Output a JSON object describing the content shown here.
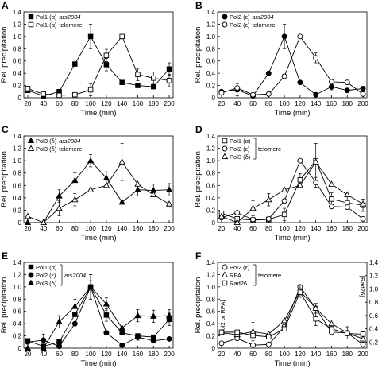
{
  "chart_data": [
    {
      "panel": "A",
      "type": "line",
      "xlabel": "Time (min)",
      "ylabel": "Rel. precipitation",
      "x_ticks": [
        20,
        40,
        60,
        80,
        100,
        120,
        140,
        160,
        180,
        200
      ],
      "xlim": [
        15,
        205
      ],
      "ylim": [
        0,
        1.4
      ],
      "y_ticks": [
        "0",
        "0.2",
        "0.4",
        "0.6",
        "0.8",
        "1.0",
        "1.2",
        "1.4"
      ],
      "legend": "top-left",
      "series": [
        {
          "name": "Pol1 (α) ars2004",
          "legend_main": "Pol1 (α)",
          "legend_tail": "ars2004",
          "tail_italic": true,
          "marker": "square",
          "filled": true,
          "x": [
            20,
            40,
            60,
            80,
            100,
            120,
            140,
            160,
            180,
            200
          ],
          "y": [
            0.12,
            0.03,
            0.1,
            0.55,
            1.0,
            0.54,
            0.25,
            0.2,
            0.18,
            0.47
          ],
          "err": [
            0,
            0,
            0,
            0,
            0.2,
            0.1,
            0,
            0,
            0,
            0.1
          ]
        },
        {
          "name": "Pol1 (α) telomere",
          "legend_main": "Pol1 (α)",
          "legend_tail": "telomere",
          "tail_italic": false,
          "marker": "square",
          "filled": false,
          "x": [
            20,
            40,
            60,
            80,
            100,
            120,
            140,
            160,
            180,
            200
          ],
          "y": [
            0.15,
            0.06,
            0.04,
            0.05,
            0.13,
            0.69,
            1.0,
            0.38,
            0.32,
            0.28
          ],
          "err": [
            0,
            0,
            0,
            0,
            0.1,
            0.1,
            0,
            0.1,
            0.1,
            0.1
          ]
        }
      ]
    },
    {
      "panel": "B",
      "type": "line",
      "xlabel": "Time (min)",
      "ylabel": "Rel. precipitation",
      "x_ticks": [
        20,
        40,
        60,
        80,
        100,
        120,
        140,
        160,
        180,
        200
      ],
      "xlim": [
        15,
        205
      ],
      "ylim": [
        0,
        1.4
      ],
      "y_ticks": [
        "0",
        "0.2",
        "0.4",
        "0.6",
        "0.8",
        "1.0",
        "1.2",
        "1.4"
      ],
      "legend": "top-left",
      "series": [
        {
          "name": "Pol2 (ε) ars2004",
          "legend_main": "Pol2 (ε)",
          "legend_tail": "ars2004",
          "tail_italic": true,
          "marker": "circle",
          "filled": true,
          "x": [
            20,
            40,
            60,
            80,
            100,
            120,
            140,
            160,
            180,
            200
          ],
          "y": [
            0.1,
            0.13,
            0.03,
            0.4,
            1.0,
            0.25,
            0.05,
            0.18,
            0.12,
            0.15
          ],
          "err": [
            0,
            0.1,
            0,
            0,
            0.2,
            0,
            0,
            0.05,
            0,
            0
          ]
        },
        {
          "name": "Pol2 (ε) telomere",
          "legend_main": "Pol2 (ε)",
          "legend_tail": "telomere",
          "tail_italic": false,
          "marker": "circle",
          "filled": false,
          "x": [
            20,
            40,
            60,
            80,
            100,
            120,
            140,
            160,
            180,
            200
          ],
          "y": [
            0.08,
            0.16,
            0.05,
            0.06,
            0.35,
            1.0,
            0.65,
            0.26,
            0.25,
            0.06
          ],
          "err": [
            0,
            0,
            0,
            0,
            0,
            0,
            0.08,
            0,
            0,
            0
          ]
        }
      ]
    },
    {
      "panel": "C",
      "type": "line",
      "xlabel": "Time (min)",
      "ylabel": "Rel. precipitation",
      "x_ticks": [
        20,
        40,
        60,
        80,
        100,
        120,
        140,
        160,
        180,
        200
      ],
      "xlim": [
        15,
        205
      ],
      "ylim": [
        0,
        1.4
      ],
      "y_ticks": [
        "0",
        "0.2",
        "0.4",
        "0.6",
        "0.8",
        "1.0",
        "1.2",
        "1.4"
      ],
      "legend": "top-left",
      "series": [
        {
          "name": "Pol3 (δ) ars2004",
          "legend_main": "Pol3 (δ)",
          "legend_tail": "ars2004",
          "tail_italic": true,
          "marker": "triangle",
          "filled": true,
          "x": [
            20,
            40,
            60,
            80,
            100,
            120,
            140,
            160,
            180,
            200
          ],
          "y": [
            0.0,
            0.0,
            0.43,
            0.68,
            1.0,
            0.72,
            0.33,
            0.53,
            0.52,
            0.53
          ],
          "err": [
            0,
            0,
            0.1,
            0.12,
            0.1,
            0.1,
            0,
            0.1,
            0.1,
            0.1
          ]
        },
        {
          "name": "Pol3 (δ) telomere",
          "legend_main": "Pol3 (δ)",
          "legend_tail": "telomere",
          "tail_italic": false,
          "marker": "triangle",
          "filled": false,
          "x": [
            20,
            40,
            60,
            80,
            100,
            120,
            140,
            160,
            180,
            200
          ],
          "y": [
            0.1,
            0.0,
            0.23,
            0.37,
            0.53,
            0.6,
            0.98,
            0.62,
            0.45,
            0.3
          ],
          "err": [
            0,
            0,
            0.12,
            0.1,
            0,
            0,
            0.3,
            0,
            0,
            0
          ]
        }
      ]
    },
    {
      "panel": "D",
      "type": "line",
      "xlabel": "Time (min)",
      "ylabel": "Rel. precipitation",
      "x_ticks": [
        20,
        40,
        60,
        80,
        100,
        120,
        140,
        160,
        180,
        200
      ],
      "xlim": [
        15,
        205
      ],
      "ylim": [
        0,
        1.4
      ],
      "y_ticks": [
        "0",
        "0.2",
        "0.4",
        "0.6",
        "0.8",
        "1.0",
        "1.2",
        "1.4"
      ],
      "legend": "top-left",
      "legend_group_label": "telomere",
      "series": [
        {
          "name": "Pol1 (α)",
          "legend_main": "Pol1 (α)",
          "legend_tail": "",
          "tail_italic": false,
          "marker": "square",
          "filled": false,
          "x": [
            20,
            40,
            60,
            80,
            100,
            120,
            140,
            160,
            180,
            200
          ],
          "y": [
            0.15,
            0.06,
            0.04,
            0.05,
            0.13,
            0.69,
            1.0,
            0.38,
            0.32,
            0.28
          ],
          "err": [
            0,
            0,
            0,
            0,
            0.1,
            0.1,
            0,
            0.1,
            0.1,
            0.1
          ]
        },
        {
          "name": "Pol2 (ε)",
          "legend_main": "Pol2 (ε)",
          "legend_tail": "",
          "tail_italic": false,
          "marker": "circle",
          "filled": false,
          "x": [
            20,
            40,
            60,
            80,
            100,
            120,
            140,
            160,
            180,
            200
          ],
          "y": [
            0.08,
            0.16,
            0.05,
            0.06,
            0.35,
            1.0,
            0.65,
            0.26,
            0.25,
            0.06
          ],
          "err": [
            0,
            0,
            0,
            0,
            0,
            0,
            0.08,
            0,
            0,
            0
          ]
        },
        {
          "name": "Pol3 (δ)",
          "legend_main": "Pol3 (δ)",
          "legend_tail": "",
          "tail_italic": false,
          "marker": "triangle",
          "filled": false,
          "x": [
            20,
            40,
            60,
            80,
            100,
            120,
            140,
            160,
            180,
            200
          ],
          "y": [
            0.1,
            0.0,
            0.23,
            0.37,
            0.53,
            0.6,
            0.98,
            0.62,
            0.45,
            0.3
          ],
          "err": [
            0,
            0,
            0.12,
            0.1,
            0,
            0,
            0.3,
            0,
            0,
            0
          ]
        }
      ]
    },
    {
      "panel": "E",
      "type": "line",
      "xlabel": "Time (min)",
      "ylabel": "Rel. precipitation",
      "x_ticks": [
        20,
        40,
        60,
        80,
        100,
        120,
        140,
        160,
        180,
        200
      ],
      "xlim": [
        15,
        205
      ],
      "ylim": [
        0,
        1.4
      ],
      "y_ticks": [
        "0",
        "0.2",
        "0.4",
        "0.6",
        "0.8",
        "1.0",
        "1.2",
        "1.4"
      ],
      "legend": "top-left",
      "legend_group_label": "ars2004",
      "series": [
        {
          "name": "Pol1 (α)",
          "legend_main": "Pol1 (α)",
          "legend_tail": "",
          "tail_italic": false,
          "marker": "square",
          "filled": true,
          "x": [
            20,
            40,
            60,
            80,
            100,
            120,
            140,
            160,
            180,
            200
          ],
          "y": [
            0.12,
            0.03,
            0.1,
            0.55,
            1.0,
            0.54,
            0.25,
            0.2,
            0.18,
            0.47
          ],
          "err": [
            0,
            0,
            0,
            0,
            0.2,
            0.1,
            0,
            0,
            0,
            0.1
          ]
        },
        {
          "name": "Pol2 (ε)",
          "legend_main": "Pol2 (ε)",
          "legend_tail": "",
          "tail_italic": false,
          "marker": "circle",
          "filled": true,
          "x": [
            20,
            40,
            60,
            80,
            100,
            120,
            140,
            160,
            180,
            200
          ],
          "y": [
            0.1,
            0.13,
            0.03,
            0.4,
            1.0,
            0.25,
            0.05,
            0.18,
            0.12,
            0.15
          ],
          "err": [
            0,
            0.1,
            0,
            0,
            0.2,
            0,
            0,
            0.05,
            0,
            0
          ]
        },
        {
          "name": "Pol3 (δ)",
          "legend_main": "Pol3 (δ)",
          "legend_tail": "",
          "tail_italic": false,
          "marker": "triangle",
          "filled": true,
          "x": [
            20,
            40,
            60,
            80,
            100,
            120,
            140,
            160,
            180,
            200
          ],
          "y": [
            0.0,
            0.0,
            0.43,
            0.68,
            1.0,
            0.72,
            0.33,
            0.53,
            0.52,
            0.53
          ],
          "err": [
            0,
            0,
            0.1,
            0.12,
            0.1,
            0.1,
            0,
            0.1,
            0.1,
            0.1
          ]
        }
      ]
    },
    {
      "panel": "F",
      "type": "line",
      "xlabel": "Time (min)",
      "ylabel": "Rel. precipitation",
      "ylabel_inner_left": "[Pol2 or RPA]",
      "ylabel_right": "[Rad26]",
      "x_ticks": [
        20,
        40,
        60,
        80,
        100,
        120,
        140,
        160,
        180,
        200
      ],
      "xlim": [
        15,
        205
      ],
      "ylim": [
        0,
        1.4
      ],
      "y_ticks": [
        "0",
        "0.2",
        "0.4",
        "0.6",
        "0.8",
        "1.0",
        "1.2",
        "1.4"
      ],
      "y2_ticks": [
        "0.2",
        "0.4",
        "0.6",
        "0.8",
        "1.0",
        "1.2",
        "1.4"
      ],
      "y2lim": [
        0.2,
        1.4
      ],
      "legend": "top-left",
      "legend_group_label": "telomere",
      "series": [
        {
          "name": "Pol2 (ε)",
          "legend_main": "Pol2 (ε)",
          "legend_tail": "",
          "tail_italic": false,
          "marker": "circle",
          "filled": false,
          "x": [
            20,
            40,
            60,
            80,
            100,
            120,
            140,
            160,
            180,
            200
          ],
          "y": [
            0.08,
            0.16,
            0.05,
            0.06,
            0.35,
            1.0,
            0.65,
            0.26,
            0.25,
            0.06
          ],
          "err": [
            0,
            0,
            0,
            0,
            0,
            0,
            0.08,
            0,
            0,
            0
          ]
        },
        {
          "name": "RPA",
          "legend_main": "RPA",
          "legend_tail": "",
          "tail_italic": false,
          "marker": "triangle",
          "filled": false,
          "x": [
            20,
            40,
            60,
            80,
            100,
            120,
            140,
            160,
            180,
            200
          ],
          "y": [
            0.25,
            0.22,
            0.27,
            0.23,
            0.45,
            0.93,
            0.65,
            0.4,
            0.25,
            0.15
          ],
          "err": [
            0,
            0,
            0.15,
            0,
            0,
            0.1,
            0,
            0,
            0.1,
            0
          ]
        },
        {
          "name": "Rad26",
          "legend_main": "Rad26",
          "legend_tail": "",
          "tail_italic": false,
          "marker": "square",
          "filled": false,
          "axis": "right",
          "x": [
            20,
            40,
            60,
            80,
            100,
            120,
            140,
            160,
            180,
            200
          ],
          "y": [
            0.35,
            0.35,
            0.3,
            0.28,
            0.4,
            0.95,
            0.55,
            0.4,
            0.33,
            0.32
          ],
          "err": [
            0,
            0,
            0,
            0,
            0,
            0,
            0.1,
            0,
            0,
            0
          ]
        }
      ]
    }
  ]
}
